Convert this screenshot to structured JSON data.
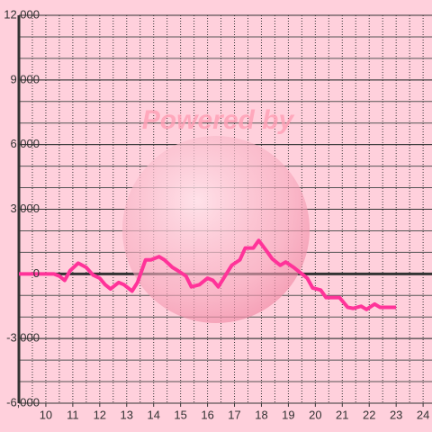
{
  "chart_data": {
    "type": "line",
    "watermark": "Powered by",
    "xlim": [
      9,
      24.33
    ],
    "xticks": [
      10,
      11,
      12,
      13,
      14,
      15,
      16,
      17,
      18,
      19,
      20,
      21,
      22,
      23,
      24
    ],
    "x_minor_step": 0.5,
    "ylim": [
      -6000,
      12000
    ],
    "yticks": [
      {
        "value": -6000,
        "label": "-6,000"
      },
      {
        "value": -3000,
        "label": "-3,000"
      },
      0,
      {
        "value": 3000,
        "label": "3,000"
      },
      {
        "value": 6000,
        "label": "6,000"
      },
      {
        "value": 9000,
        "label": "9,000"
      },
      {
        "value": 12000,
        "label": "12,000"
      }
    ],
    "y_minor_step": 1000,
    "grid": true,
    "series": [
      {
        "color": "#ff3399",
        "x": [
          9.0,
          10.3,
          10.5,
          10.7,
          10.9,
          11.2,
          11.5,
          11.75,
          12.0,
          12.2,
          12.4,
          12.7,
          12.9,
          13.2,
          13.4,
          13.7,
          13.9,
          14.2,
          14.4,
          14.7,
          14.9,
          15.2,
          15.4,
          15.7,
          16.0,
          16.2,
          16.4,
          16.7,
          16.9,
          17.2,
          17.4,
          17.7,
          17.9,
          18.2,
          18.4,
          18.7,
          18.9,
          19.2,
          19.4,
          19.7,
          19.9,
          20.2,
          20.4,
          20.9,
          21.2,
          21.4,
          21.7,
          21.9,
          22.2,
          22.4,
          23.0
        ],
        "values": [
          0,
          0,
          -100,
          -300,
          150,
          500,
          300,
          -50,
          -200,
          -500,
          -700,
          -400,
          -500,
          -800,
          -400,
          650,
          650,
          800,
          650,
          300,
          150,
          -100,
          -600,
          -500,
          -200,
          -300,
          -600,
          0,
          400,
          650,
          1200,
          1200,
          1550,
          1050,
          700,
          400,
          550,
          300,
          100,
          -200,
          -650,
          -750,
          -1100,
          -1100,
          -1550,
          -1600,
          -1500,
          -1650,
          -1400,
          -1550,
          -1550
        ]
      }
    ]
  }
}
